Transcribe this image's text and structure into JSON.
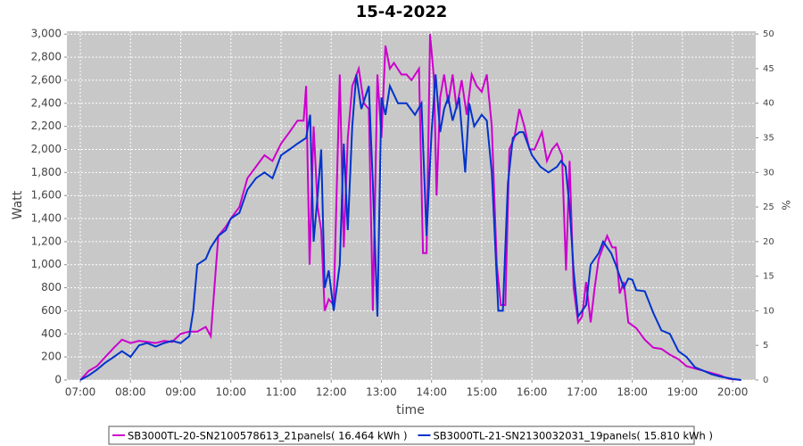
{
  "chart_data": {
    "type": "line",
    "title": "15-4-2022",
    "x_label": "time",
    "y_label": "Watt",
    "y2_label": "%",
    "xlim": [
      6.733,
      20.46
    ],
    "xticks": [
      {
        "value": 7,
        "label": "07:00"
      },
      {
        "value": 8,
        "label": "08:00"
      },
      {
        "value": 9,
        "label": "09:00"
      },
      {
        "value": 10,
        "label": "10:00"
      },
      {
        "value": 11,
        "label": "11:00"
      },
      {
        "value": 12,
        "label": "12:00"
      },
      {
        "value": 13,
        "label": "13:00"
      },
      {
        "value": 14,
        "label": "14:00"
      },
      {
        "value": 15,
        "label": "15:00"
      },
      {
        "value": 16,
        "label": "16:00"
      },
      {
        "value": 17,
        "label": "17:00"
      },
      {
        "value": 18,
        "label": "18:00"
      },
      {
        "value": 19,
        "label": "19:00"
      },
      {
        "value": 20,
        "label": "20:00"
      }
    ],
    "ylim": [
      0,
      3025
    ],
    "yticks": [
      0,
      200,
      400,
      600,
      800,
      {
        "value": 1000,
        "label": "1,000"
      },
      {
        "value": 1200,
        "label": "1,200"
      },
      {
        "value": 1400,
        "label": "1,400"
      },
      {
        "value": 1600,
        "label": "1,600"
      },
      {
        "value": 1800,
        "label": "1,800"
      },
      {
        "value": 2000,
        "label": "2,000"
      },
      {
        "value": 2200,
        "label": "2,200"
      },
      {
        "value": 2400,
        "label": "2,400"
      },
      {
        "value": 2600,
        "label": "2,600"
      },
      {
        "value": 2800,
        "label": "2,800"
      },
      {
        "value": 3000,
        "label": "3,000"
      }
    ],
    "y2lim": [
      0,
      50.4
    ],
    "y2ticks": [
      0,
      5,
      10,
      15,
      20,
      25,
      30,
      35,
      40,
      45,
      50
    ],
    "grid": true,
    "legend": "bottom",
    "series": [
      {
        "name": "SB3000TL-20-SN2100578613_21panels( 16.464 kWh )",
        "color": "#cc00cc",
        "x": [
          7.0,
          7.17,
          7.33,
          7.5,
          7.67,
          7.83,
          8.0,
          8.17,
          8.33,
          8.5,
          8.67,
          8.83,
          9.0,
          9.17,
          9.33,
          9.5,
          9.6,
          9.75,
          9.9,
          10.0,
          10.17,
          10.33,
          10.5,
          10.67,
          10.83,
          11.0,
          11.17,
          11.33,
          11.45,
          11.5,
          11.57,
          11.65,
          11.73,
          11.8,
          11.87,
          11.95,
          12.05,
          12.17,
          12.25,
          12.33,
          12.42,
          12.55,
          12.65,
          12.75,
          12.83,
          12.92,
          13.0,
          13.08,
          13.17,
          13.25,
          13.4,
          13.5,
          13.6,
          13.75,
          13.83,
          13.9,
          13.97,
          14.05,
          14.1,
          14.17,
          14.25,
          14.33,
          14.42,
          14.5,
          14.6,
          14.7,
          14.8,
          14.9,
          15.0,
          15.1,
          15.2,
          15.3,
          15.38,
          15.47,
          15.55,
          15.65,
          15.75,
          15.85,
          15.95,
          16.05,
          16.2,
          16.3,
          16.4,
          16.5,
          16.6,
          16.68,
          16.75,
          16.83,
          16.92,
          17.0,
          17.08,
          17.17,
          17.25,
          17.33,
          17.5,
          17.6,
          17.67,
          17.75,
          17.83,
          17.92,
          18.08,
          18.25,
          18.42,
          18.58,
          18.75,
          18.92,
          19.08,
          19.25,
          19.42,
          19.58,
          19.75,
          19.92,
          20.17
        ],
        "values": [
          0,
          80,
          120,
          200,
          280,
          350,
          320,
          340,
          330,
          320,
          340,
          330,
          400,
          420,
          420,
          460,
          380,
          1250,
          1330,
          1400,
          1500,
          1750,
          1850,
          1950,
          1900,
          2050,
          2150,
          2250,
          2250,
          2550,
          1000,
          2200,
          1500,
          1300,
          600,
          700,
          650,
          2650,
          1150,
          2100,
          2550,
          2700,
          2400,
          2350,
          600,
          2650,
          2100,
          2900,
          2700,
          2750,
          2650,
          2650,
          2600,
          2700,
          1100,
          1100,
          3000,
          2600,
          1600,
          2450,
          2650,
          2400,
          2650,
          2350,
          2600,
          2300,
          2650,
          2550,
          2500,
          2650,
          2200,
          1000,
          650,
          650,
          2000,
          2100,
          2350,
          2200,
          2000,
          2000,
          2150,
          1900,
          2000,
          2050,
          1950,
          950,
          1900,
          800,
          500,
          550,
          850,
          500,
          800,
          1050,
          1250,
          1150,
          1150,
          750,
          850,
          500,
          450,
          350,
          280,
          270,
          220,
          180,
          120,
          100,
          80,
          60,
          40,
          10,
          0
        ]
      },
      {
        "name": "SB3000TL-21-SN2130032031_19panels( 15.810 kWh )",
        "color": "#0033cc",
        "x": [
          7.0,
          7.17,
          7.33,
          7.5,
          7.67,
          7.83,
          8.0,
          8.17,
          8.33,
          8.5,
          8.67,
          8.83,
          9.0,
          9.17,
          9.25,
          9.33,
          9.5,
          9.6,
          9.75,
          9.9,
          10.0,
          10.17,
          10.33,
          10.5,
          10.67,
          10.83,
          11.0,
          11.17,
          11.33,
          11.5,
          11.58,
          11.65,
          11.73,
          11.8,
          11.87,
          11.95,
          12.05,
          12.17,
          12.25,
          12.33,
          12.42,
          12.5,
          12.6,
          12.75,
          12.83,
          12.92,
          13.0,
          13.08,
          13.17,
          13.33,
          13.5,
          13.67,
          13.8,
          13.9,
          14.0,
          14.08,
          14.17,
          14.25,
          14.33,
          14.42,
          14.55,
          14.67,
          14.75,
          14.85,
          15.0,
          15.1,
          15.2,
          15.33,
          15.42,
          15.52,
          15.62,
          15.75,
          15.83,
          16.0,
          16.17,
          16.33,
          16.5,
          16.58,
          16.67,
          16.75,
          16.83,
          16.92,
          17.0,
          17.08,
          17.17,
          17.33,
          17.42,
          17.5,
          17.58,
          17.67,
          17.75,
          17.83,
          17.92,
          18.0,
          18.08,
          18.25,
          18.42,
          18.58,
          18.75,
          18.92,
          19.08,
          19.25,
          19.42,
          19.58,
          19.75,
          20.0,
          20.17
        ],
        "values": [
          0,
          40,
          90,
          150,
          200,
          250,
          200,
          300,
          320,
          290,
          320,
          340,
          320,
          380,
          600,
          1000,
          1050,
          1150,
          1250,
          1300,
          1400,
          1450,
          1650,
          1750,
          1800,
          1750,
          1950,
          2000,
          2050,
          2100,
          2300,
          1200,
          1600,
          2000,
          800,
          950,
          600,
          1000,
          2050,
          1300,
          2200,
          2650,
          2350,
          2550,
          1700,
          550,
          2450,
          2300,
          2550,
          2400,
          2400,
          2300,
          2400,
          1250,
          2150,
          2650,
          2150,
          2350,
          2450,
          2250,
          2450,
          1800,
          2400,
          2200,
          2300,
          2250,
          1800,
          600,
          600,
          1700,
          2100,
          2150,
          2150,
          1950,
          1850,
          1800,
          1850,
          1900,
          1850,
          1500,
          950,
          550,
          600,
          650,
          1000,
          1100,
          1200,
          1150,
          1100,
          1000,
          900,
          800,
          880,
          870,
          780,
          770,
          580,
          430,
          400,
          250,
          200,
          110,
          80,
          50,
          30,
          10,
          0
        ]
      }
    ]
  }
}
